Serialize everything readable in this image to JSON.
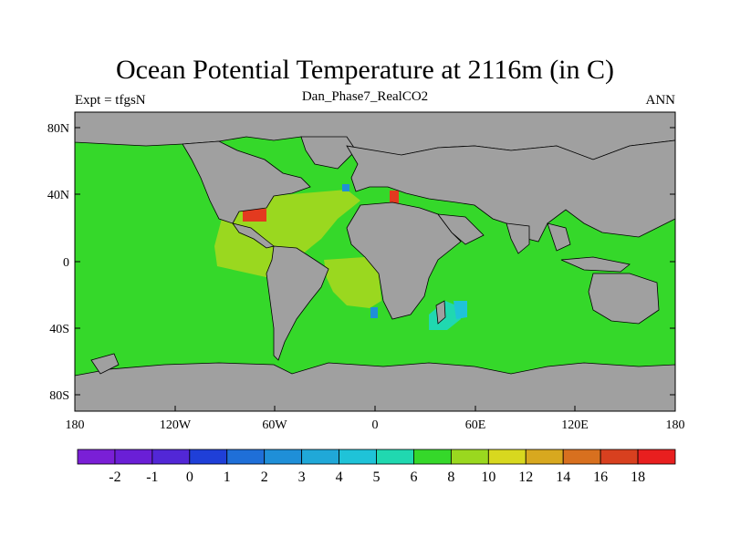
{
  "title": "Ocean Potential Temperature at 2116m (in C)",
  "subtitle": "Dan_Phase7_RealCO2",
  "left_label": "Expt = tfgsN",
  "right_label": "ANN",
  "map": {
    "lat_ticks": [
      "80N",
      "40N",
      "0",
      "40S",
      "80S"
    ],
    "lon_ticks": [
      "180",
      "120W",
      "60W",
      "0",
      "60E",
      "120E",
      "180"
    ],
    "land_color": "#a0a0a0"
  },
  "colorbar": {
    "colors": [
      "#7a1fd6",
      "#6a1fd6",
      "#5227d6",
      "#1f3fd8",
      "#1f6fd8",
      "#1f8fd8",
      "#20a8d8",
      "#1fc3d8",
      "#20d8b0",
      "#35d82a",
      "#9ad81f",
      "#d8d81f",
      "#d8a81f",
      "#d8701f",
      "#d8401f",
      "#e81f1f"
    ],
    "labels": [
      "-2",
      "-1",
      "0",
      "1",
      "2",
      "3",
      "4",
      "5",
      "6",
      "8",
      "10",
      "12",
      "14",
      "16",
      "18"
    ]
  }
}
